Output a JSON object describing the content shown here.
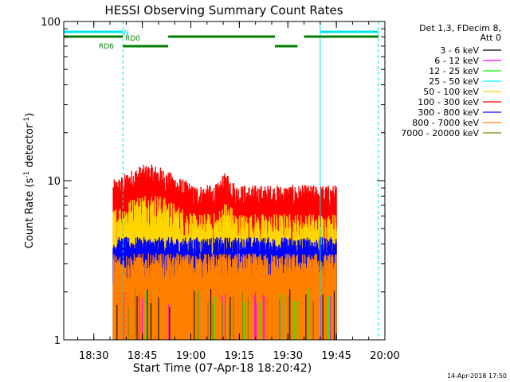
{
  "chart_data": {
    "type": "line",
    "title": "HESSI Observing Summary Count Rates",
    "xlabel": "Start Time (07-Apr-18 18:20:42)",
    "ylabel_main": "Count Rate (s",
    "ylabel_sup1": "-1",
    "ylabel_mid": " detector",
    "ylabel_sup2": "-1",
    "ylabel_end": ")",
    "y_scale": "log",
    "ylim": [
      1,
      100
    ],
    "x_range_minutes": [
      "18:20:42",
      "20:00"
    ],
    "x_ticks": [
      "18:30",
      "18:45",
      "19:00",
      "19:15",
      "19:30",
      "19:45",
      "20:00"
    ],
    "y_ticks": [
      "1",
      "10",
      "100"
    ],
    "legend_header_1": "Det 1,3, FDecim 8,",
    "legend_header_2": "Att 0",
    "legend_position": "top-right",
    "series": [
      {
        "name": "3 - 6 keV",
        "color": "#000000"
      },
      {
        "name": "6 - 12 keV",
        "color": "#ff00ff"
      },
      {
        "name": "12 - 25 keV",
        "color": "#00ff00"
      },
      {
        "name": "25 - 50 keV",
        "color": "#00ffff"
      },
      {
        "name": "50 - 100 keV",
        "color": "#ffd700"
      },
      {
        "name": "100 - 300 keV",
        "color": "#ff0000"
      },
      {
        "name": "300 - 800 keV",
        "color": "#0000ff"
      },
      {
        "name": "800 - 7000 keV",
        "color": "#ff8000"
      },
      {
        "name": "7000 - 20000 keV",
        "color": "#808000"
      }
    ],
    "activity_window": [
      "18:36",
      "19:45"
    ],
    "count_rate_levels": {
      "100 - 300 keV": {
        "typical": 8,
        "peak": 15,
        "peak_time": "18:47"
      },
      "50 - 100 keV": {
        "typical": 5
      },
      "300 - 800 keV": {
        "typical": 3.5
      },
      "800 - 7000 keV": {
        "typical": 2
      }
    },
    "annotations": {
      "N": "N",
      "RD0": "RD0",
      "RD6": "RD6"
    },
    "flag_bars": {
      "N": [
        [
          "18:20",
          "18:39"
        ],
        [
          "19:40",
          "19:58"
        ]
      ],
      "RD0": [
        [
          "18:20",
          "18:39"
        ],
        [
          "18:53",
          "19:26"
        ],
        [
          "19:35",
          "19:58"
        ]
      ],
      "RD6": [
        [
          "18:39",
          "18:53"
        ],
        [
          "19:26",
          "19:33"
        ]
      ]
    },
    "vertical_lines": {
      "solid_cyan": [
        "18:20:42",
        "19:40"
      ],
      "dashed_cyan": [
        "18:39",
        "19:58"
      ]
    }
  },
  "timestamp": "14-Apr-2018 17:50"
}
